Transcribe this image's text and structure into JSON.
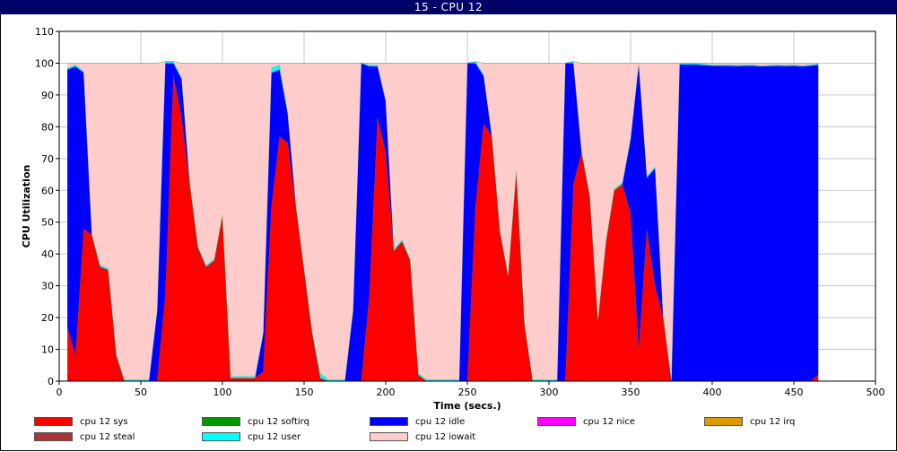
{
  "window_title": "15 - CPU 12",
  "chart_data": {
    "type": "area",
    "stacked": true,
    "xlabel": "Time (secs.)",
    "ylabel": "CPU Utilization",
    "xlim": [
      0,
      500
    ],
    "ylim": [
      0,
      110
    ],
    "xticks": [
      0,
      50,
      100,
      150,
      200,
      250,
      300,
      350,
      400,
      450,
      500
    ],
    "yticks": [
      0,
      10,
      20,
      30,
      40,
      50,
      60,
      70,
      80,
      90,
      100,
      110
    ],
    "grid": true,
    "legend_position": "bottom",
    "x": [
      5,
      10,
      15,
      20,
      25,
      30,
      35,
      40,
      45,
      50,
      55,
      60,
      65,
      70,
      75,
      80,
      85,
      90,
      95,
      100,
      105,
      110,
      115,
      120,
      125,
      130,
      135,
      140,
      145,
      150,
      155,
      160,
      165,
      170,
      175,
      180,
      185,
      190,
      195,
      200,
      205,
      210,
      215,
      220,
      225,
      230,
      235,
      240,
      245,
      250,
      255,
      260,
      265,
      270,
      275,
      280,
      285,
      290,
      295,
      300,
      305,
      310,
      315,
      320,
      325,
      330,
      335,
      340,
      345,
      350,
      355,
      360,
      365,
      370,
      375,
      380,
      385,
      390,
      395,
      400,
      405,
      410,
      415,
      420,
      425,
      430,
      435,
      440,
      445,
      450,
      455,
      460,
      465
    ],
    "series": [
      {
        "name": "cpu 12 sys",
        "color": "#ff0000",
        "values": [
          17,
          8,
          48,
          46,
          36,
          35,
          8,
          0,
          0,
          0,
          0,
          0,
          27,
          96,
          83,
          62,
          42,
          36,
          38,
          52,
          1,
          1,
          1,
          1,
          3,
          55,
          77,
          75,
          55,
          35,
          15,
          1,
          0,
          0,
          0,
          0,
          0,
          27,
          83,
          72,
          41,
          44,
          38,
          2,
          0,
          0,
          0,
          0,
          0,
          0,
          55,
          81,
          77,
          47,
          33,
          66,
          18,
          0,
          0,
          0,
          0,
          0,
          62,
          72,
          58,
          19,
          44,
          60,
          62,
          53,
          10,
          48,
          30,
          20,
          0,
          0,
          0,
          0,
          0,
          0,
          0,
          0,
          0,
          0,
          0,
          0,
          0,
          0,
          0,
          0,
          0,
          0,
          2
        ]
      },
      {
        "name": "cpu 12 softirq",
        "color": "#009900",
        "values": [
          0,
          0,
          0,
          0,
          0,
          0,
          0,
          0,
          0,
          0,
          0,
          0,
          0,
          0,
          0,
          0,
          0,
          0,
          0,
          0,
          0,
          0,
          0,
          0,
          0,
          0,
          0,
          0,
          0,
          0,
          0,
          0,
          0,
          0,
          0,
          0,
          0,
          0,
          0,
          0,
          0,
          0,
          0,
          0,
          0,
          0,
          0,
          0,
          0,
          0,
          0,
          0,
          0,
          0,
          0,
          0,
          0,
          0,
          0,
          0,
          0,
          0,
          0,
          0,
          0,
          0,
          0,
          0,
          0,
          0,
          0,
          0,
          0,
          0,
          0,
          0,
          0,
          0,
          0,
          0,
          0,
          0,
          0,
          0,
          0,
          0,
          0,
          0,
          0,
          0,
          0,
          0,
          0
        ]
      },
      {
        "name": "cpu 12 idle",
        "color": "#0000ff",
        "values": [
          81,
          91,
          49,
          0,
          0,
          0,
          0,
          0,
          0,
          0,
          0,
          22,
          73,
          4,
          12,
          0,
          0,
          0,
          0,
          0,
          0,
          0,
          0,
          0,
          12,
          42,
          21,
          9,
          0,
          0,
          0,
          0,
          0,
          0,
          0,
          22,
          100,
          72,
          16,
          16,
          0,
          0,
          0,
          0,
          0,
          0,
          0,
          0,
          0,
          100,
          45,
          15,
          0,
          0,
          0,
          0,
          0,
          0,
          0,
          0,
          0,
          100,
          38,
          0,
          0,
          0,
          0,
          0,
          0,
          23,
          90,
          16,
          37,
          0,
          0,
          99.6,
          99.6,
          99.6,
          99.4,
          99.2,
          99.2,
          99.2,
          99.1,
          99.2,
          99.2,
          99,
          99.1,
          99.2,
          99.1,
          99.2,
          99,
          99.2,
          97.5
        ]
      },
      {
        "name": "cpu 12 nice",
        "color": "#ff00ff",
        "values": [
          0,
          0,
          0,
          0,
          0,
          0,
          0,
          0,
          0,
          0,
          0,
          0,
          0,
          0,
          0,
          0,
          0,
          0,
          0,
          0,
          0,
          0,
          0,
          0,
          0,
          0,
          0,
          0,
          0,
          0,
          0,
          0,
          0,
          0,
          0,
          0,
          0,
          0,
          0,
          0,
          0,
          0,
          0,
          0,
          0,
          0,
          0,
          0,
          0,
          0,
          0,
          0,
          0,
          0,
          0,
          0,
          0,
          0,
          0,
          0,
          0,
          0,
          0,
          0,
          0,
          0,
          0,
          0,
          0,
          0,
          0,
          0,
          0,
          0,
          0,
          0,
          0,
          0,
          0,
          0,
          0,
          0,
          0,
          0,
          0,
          0,
          0,
          0,
          0,
          0,
          0,
          0,
          0
        ]
      },
      {
        "name": "cpu 12 irq",
        "color": "#dd9900",
        "values": [
          0,
          0,
          0,
          0,
          0,
          0,
          0,
          0,
          0,
          0,
          0,
          0,
          0,
          0,
          0,
          0,
          0,
          0,
          0,
          0,
          0,
          0,
          0,
          0,
          0,
          0,
          0,
          0,
          0,
          0,
          0,
          0,
          0,
          0,
          0,
          0,
          0,
          0,
          0,
          0,
          0,
          0,
          0,
          0,
          0,
          0,
          0,
          0,
          0,
          0,
          0,
          0,
          0,
          0,
          0,
          0,
          0,
          0,
          0,
          0,
          0,
          0,
          0,
          0,
          0,
          0,
          0,
          0,
          0,
          0,
          0,
          0,
          0,
          0,
          0,
          0,
          0,
          0,
          0,
          0,
          0,
          0,
          0,
          0,
          0,
          0,
          0,
          0,
          0,
          0,
          0,
          0,
          0
        ]
      },
      {
        "name": "cpu 12 steal",
        "color": "#aa3333",
        "values": [
          0,
          0,
          0,
          0,
          0,
          0,
          0,
          0,
          0,
          0,
          0,
          0,
          0,
          0,
          0,
          0,
          0,
          0,
          0,
          0,
          0,
          0,
          0,
          0,
          0,
          0,
          0,
          0,
          0,
          0,
          0,
          0,
          0,
          0,
          0,
          0,
          0,
          0,
          0,
          0,
          0,
          0,
          0,
          0,
          0,
          0,
          0,
          0,
          0,
          0,
          0,
          0,
          0,
          0,
          0,
          0,
          0,
          0,
          0,
          0,
          0,
          0,
          0,
          0,
          0,
          0,
          0,
          0,
          0,
          0,
          0,
          0,
          0,
          0,
          0,
          0,
          0,
          0,
          0,
          0,
          0,
          0,
          0,
          0,
          0,
          0,
          0,
          0,
          0,
          0,
          0,
          0,
          0
        ]
      },
      {
        "name": "cpu 12 user",
        "color": "#00ffff",
        "values": [
          0.5,
          0.5,
          0.5,
          0.5,
          0.5,
          0.5,
          0.5,
          0.5,
          0.5,
          0.5,
          0.5,
          0.5,
          0.5,
          0.5,
          0.5,
          0.5,
          0.5,
          0.5,
          0.5,
          0.5,
          0.5,
          0.5,
          0.5,
          0.5,
          0.5,
          1.5,
          1.5,
          0.5,
          0.5,
          0.5,
          0.5,
          1.5,
          0.5,
          0.5,
          0.5,
          0.5,
          0,
          0.5,
          0.5,
          0.5,
          0.5,
          0.5,
          0.5,
          0.5,
          0.5,
          0.5,
          0.5,
          0.5,
          0.5,
          0,
          0.5,
          0.5,
          0.5,
          0.5,
          0.5,
          0.5,
          0.5,
          0.5,
          0.5,
          0.5,
          0.5,
          0,
          0.5,
          0.5,
          0.5,
          0.5,
          0.5,
          0.5,
          0.5,
          0.5,
          0,
          0.5,
          0.5,
          0.5,
          0.5,
          0.3,
          0.3,
          0.3,
          0.3,
          0.3,
          0.3,
          0.3,
          0.3,
          0.3,
          0.3,
          0.3,
          0.3,
          0.3,
          0.3,
          0.3,
          0.3,
          0.3,
          0.3
        ]
      },
      {
        "name": "cpu 12 iowait",
        "color": "#ffcccc",
        "values": [
          1.5,
          0.5,
          2.5,
          53.5,
          63.5,
          64.5,
          91.5,
          99.5,
          99.5,
          99.5,
          99.5,
          77.5,
          0,
          0,
          4.5,
          37.5,
          57.5,
          63.5,
          61.5,
          47.5,
          98.5,
          98.5,
          98.5,
          98.5,
          84.5,
          1.5,
          0.5,
          15.5,
          44.5,
          64.5,
          84.5,
          97.5,
          99.5,
          99.5,
          99.5,
          77.5,
          0,
          0.5,
          0.5,
          11.5,
          58.5,
          55.5,
          61.5,
          97.5,
          99.5,
          99.5,
          99.5,
          99.5,
          99.5,
          0,
          0,
          3.5,
          22.5,
          52.5,
          66.5,
          33.5,
          81.5,
          99.5,
          99.5,
          99.5,
          99.5,
          0,
          0,
          27.5,
          41.5,
          80.5,
          55.5,
          39.5,
          37.5,
          23.5,
          0,
          35.5,
          32.5,
          79.5,
          99.5,
          0.1,
          0.1,
          0.1,
          0.3,
          0.5,
          0.5,
          0.5,
          0.6,
          0.5,
          0.5,
          0.7,
          0.6,
          0.5,
          0.6,
          0.5,
          0.7,
          0.5,
          0.2
        ]
      }
    ]
  }
}
